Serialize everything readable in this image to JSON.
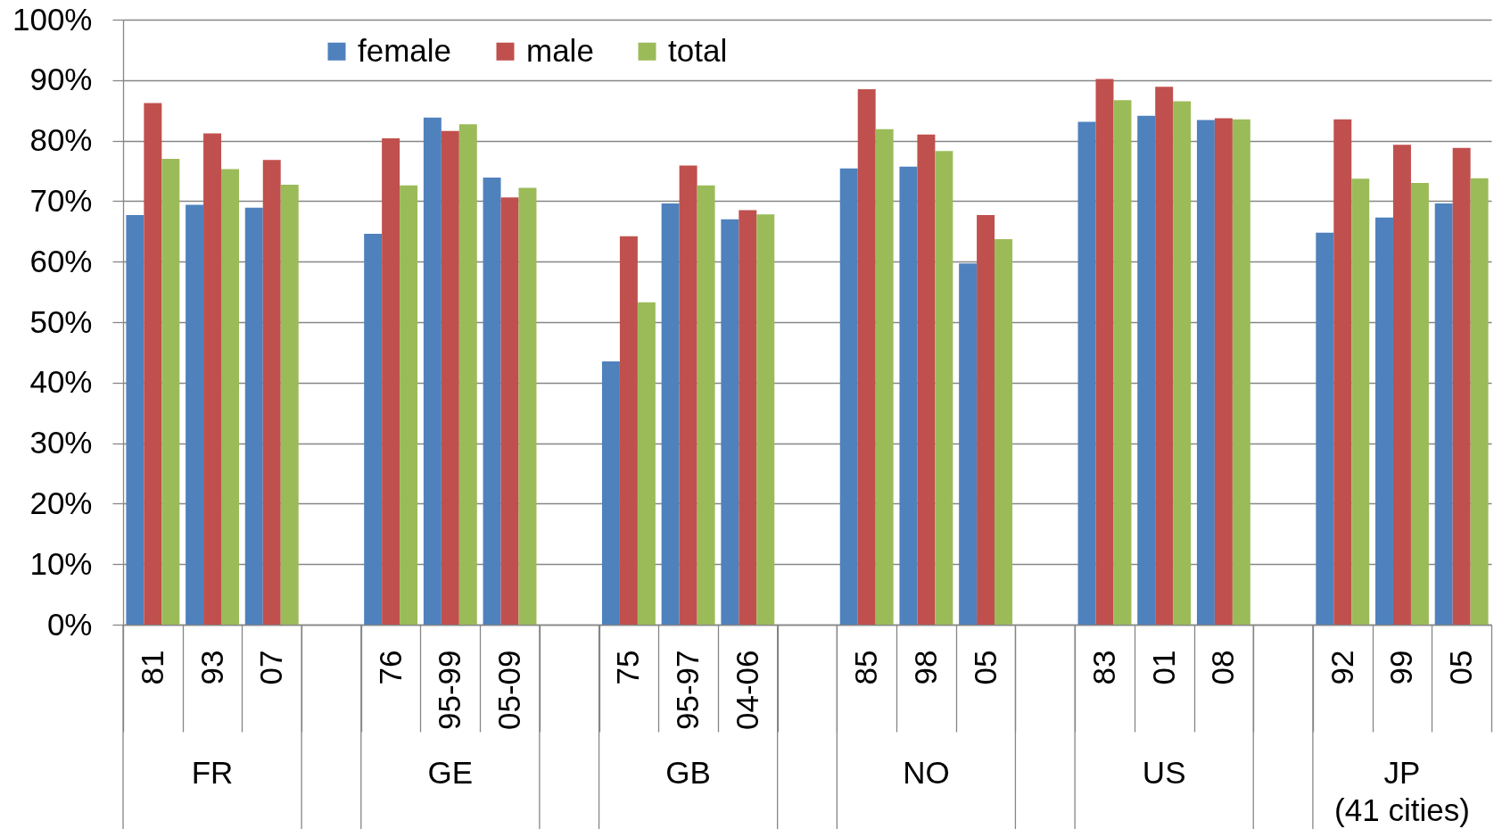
{
  "chart_data": {
    "type": "bar",
    "categories": [
      "81",
      "93",
      "07",
      null,
      "76",
      "95-99",
      "05-09",
      null,
      "75",
      "95-97",
      "04-06",
      null,
      "85",
      "98",
      "05",
      null,
      "83",
      "01",
      "08",
      null,
      "92",
      "99",
      "05"
    ],
    "series": [
      {
        "name": "female",
        "color": "#4f81bd",
        "values": [
          67.7,
          69.4,
          68.9,
          null,
          64.6,
          83.8,
          73.9,
          null,
          43.5,
          69.6,
          67.0,
          null,
          75.4,
          75.7,
          59.7,
          null,
          83.1,
          84.1,
          83.4,
          null,
          64.8,
          67.3,
          69.6
        ]
      },
      {
        "name": "male",
        "color": "#c0504d",
        "values": [
          86.2,
          81.2,
          76.8,
          null,
          80.4,
          81.6,
          70.6,
          null,
          64.2,
          75.9,
          68.5,
          null,
          88.5,
          81.0,
          67.7,
          null,
          90.2,
          88.9,
          83.7,
          null,
          83.5,
          79.3,
          78.8
        ]
      },
      {
        "name": "total",
        "color": "#9bbb59",
        "values": [
          77.0,
          75.3,
          72.7,
          null,
          72.6,
          82.7,
          72.2,
          null,
          53.3,
          72.6,
          67.8,
          null,
          81.9,
          78.3,
          63.7,
          null,
          86.7,
          86.5,
          83.5,
          null,
          73.7,
          73.0,
          73.8
        ]
      }
    ],
    "annotations": [
      "FR",
      "GE",
      "GB",
      "NO",
      "US",
      "JP\n(41 cities)"
    ],
    "ylim": [
      0,
      100
    ],
    "yticks": [
      {
        "value": 0,
        "label": "0%"
      },
      {
        "value": 10,
        "label": "10%"
      },
      {
        "value": 20,
        "label": "20%"
      },
      {
        "value": 30,
        "label": "30%"
      },
      {
        "value": 40,
        "label": "40%"
      },
      {
        "value": 50,
        "label": "50%"
      },
      {
        "value": 60,
        "label": "60%"
      },
      {
        "value": 70,
        "label": "70%"
      },
      {
        "value": 80,
        "label": "80%"
      },
      {
        "value": 90,
        "label": "90%"
      },
      {
        "value": 100,
        "label": "100%"
      }
    ],
    "grid": "y",
    "legend": "top left"
  }
}
